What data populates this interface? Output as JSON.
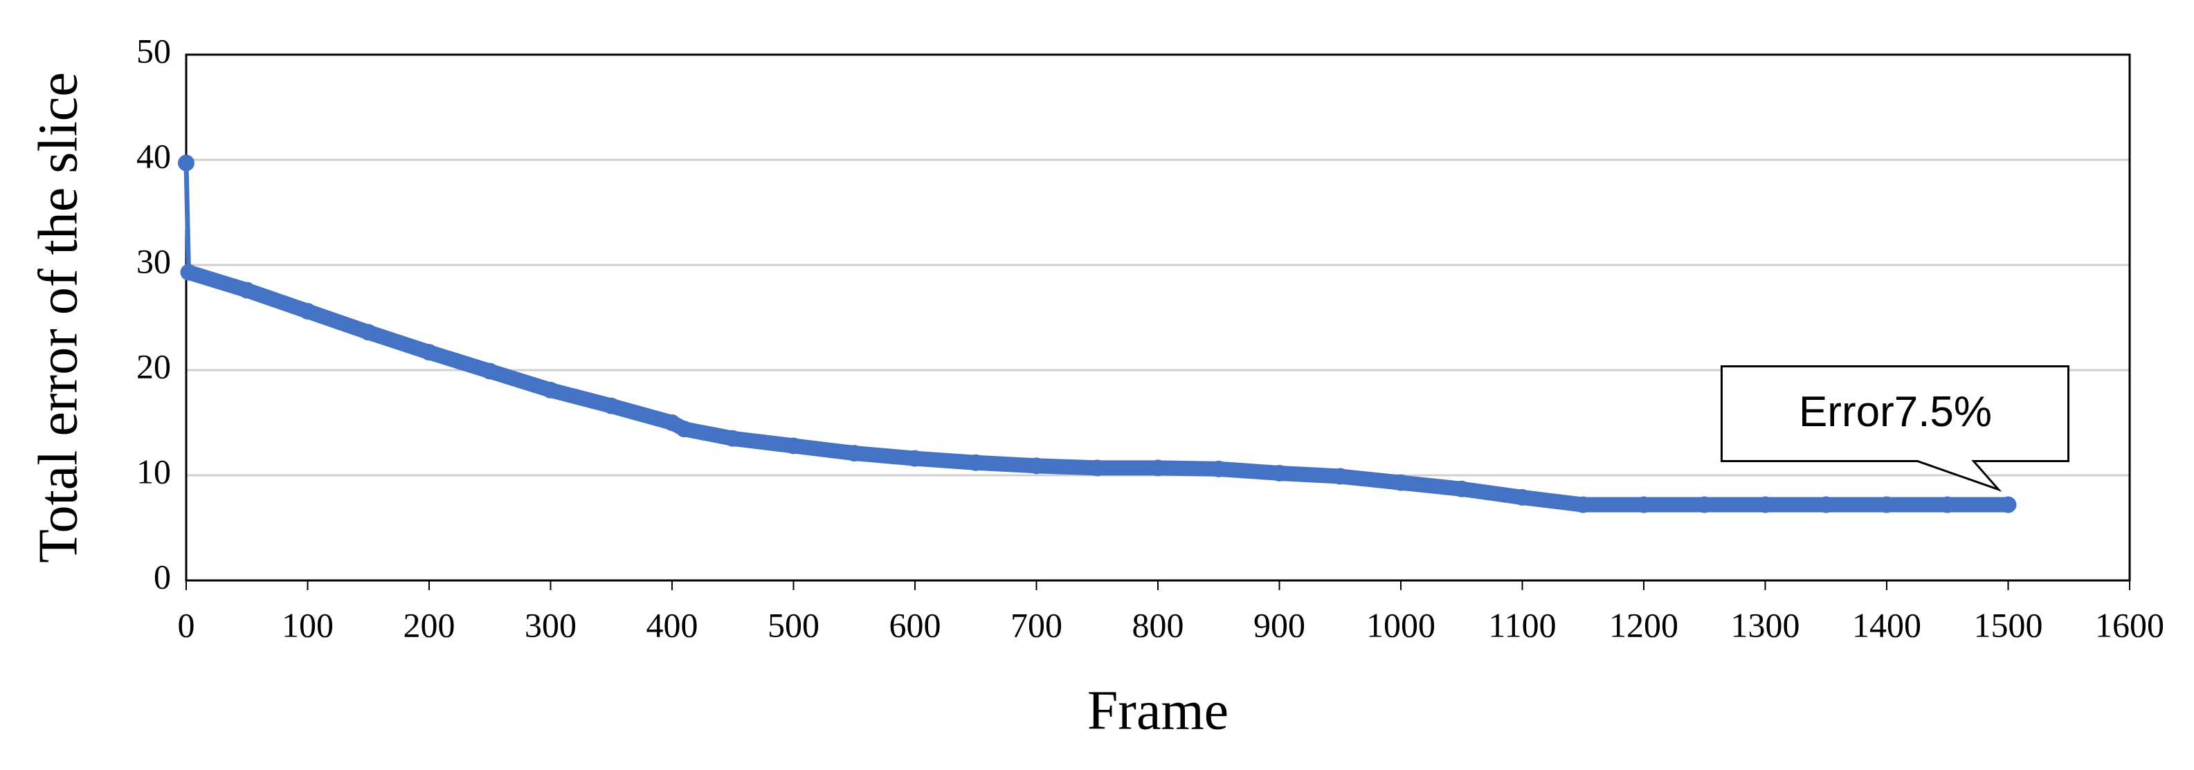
{
  "chart_data": {
    "type": "line",
    "x_label": "Frame",
    "y_label": "Total error of the slice",
    "series": [
      {
        "color": "#4472c4",
        "x": [
          0,
          2,
          50,
          100,
          150,
          200,
          250,
          300,
          350,
          400,
          410,
          450,
          500,
          550,
          600,
          650,
          700,
          750,
          800,
          850,
          900,
          950,
          1000,
          1050,
          1100,
          1150,
          1200,
          1250,
          1300,
          1350,
          1400,
          1450,
          1500
        ],
        "values": [
          39.7,
          29.3,
          27.6,
          25.6,
          23.6,
          21.7,
          19.9,
          18.1,
          16.6,
          15.0,
          14.4,
          13.5,
          12.8,
          12.1,
          11.6,
          11.2,
          10.9,
          10.7,
          10.7,
          10.6,
          10.2,
          9.9,
          9.3,
          8.7,
          7.9,
          7.2,
          7.2,
          7.2,
          7.2,
          7.2,
          7.2,
          7.2,
          7.2
        ]
      }
    ],
    "annotations": [
      {
        "text": "Error7.5%"
      }
    ],
    "xlim": [
      0,
      1600
    ],
    "xticks": [
      0,
      100,
      200,
      300,
      400,
      500,
      600,
      700,
      800,
      900,
      1000,
      1100,
      1200,
      1300,
      1400,
      1500,
      1600
    ],
    "ylim": [
      0,
      50
    ],
    "yticks": [
      0,
      10,
      20,
      30,
      40,
      50
    ],
    "grid": true
  }
}
